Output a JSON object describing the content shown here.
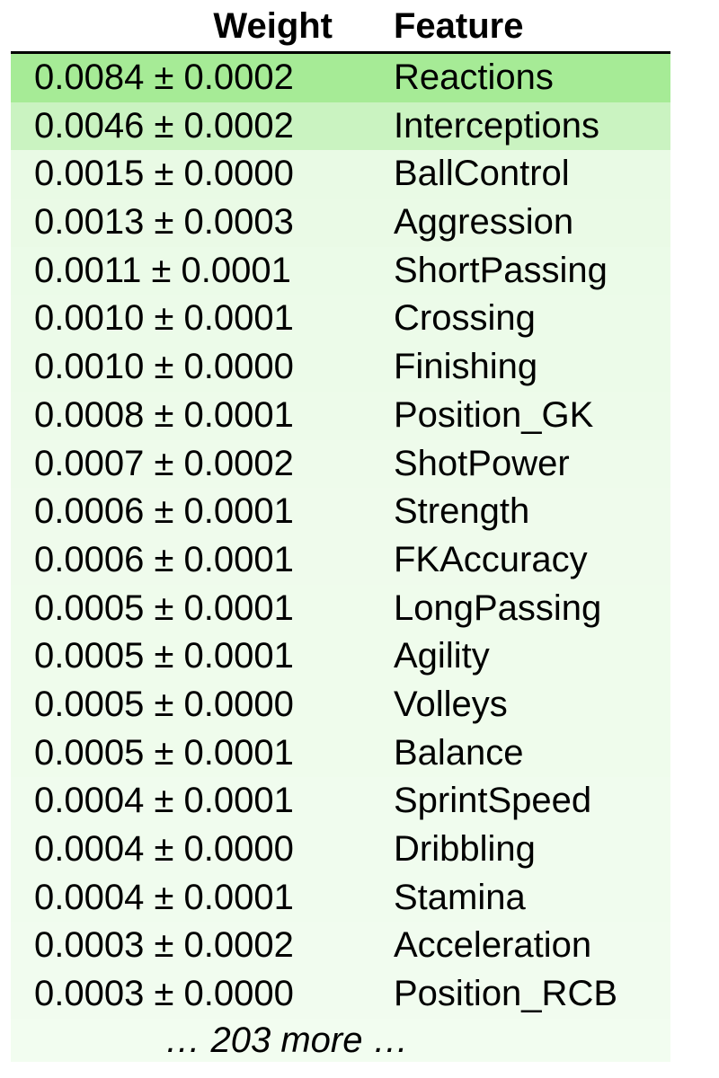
{
  "chart_data": {
    "type": "table",
    "columns": [
      "Weight",
      "Feature"
    ],
    "rows": [
      {
        "weight": "0.0084 ± 0.0002",
        "feature": "Reactions",
        "value": 0.0084,
        "std": 0.0002,
        "color": "#a6eb96"
      },
      {
        "weight": "0.0046 ± 0.0002",
        "feature": "Interceptions",
        "value": 0.0046,
        "std": 0.0002,
        "color": "#caf3c1"
      },
      {
        "weight": "0.0015 ± 0.0000",
        "feature": "BallControl",
        "value": 0.0015,
        "std": 0.0,
        "color": "#e9fae5"
      },
      {
        "weight": "0.0013 ± 0.0003",
        "feature": "Aggression",
        "value": 0.0013,
        "std": 0.0003,
        "color": "#eafae6"
      },
      {
        "weight": "0.0011 ± 0.0001",
        "feature": "ShortPassing",
        "value": 0.0011,
        "std": 0.0001,
        "color": "#ebfbe8"
      },
      {
        "weight": "0.0010 ± 0.0001",
        "feature": "Crossing",
        "value": 0.001,
        "std": 0.0001,
        "color": "#ecfbe9"
      },
      {
        "weight": "0.0010 ± 0.0000",
        "feature": "Finishing",
        "value": 0.001,
        "std": 0.0,
        "color": "#ecfbe9"
      },
      {
        "weight": "0.0008 ± 0.0001",
        "feature": "Position_GK",
        "value": 0.0008,
        "std": 0.0001,
        "color": "#edfbea"
      },
      {
        "weight": "0.0007 ± 0.0002",
        "feature": "ShotPower",
        "value": 0.0007,
        "std": 0.0002,
        "color": "#eefbeb"
      },
      {
        "weight": "0.0006 ± 0.0001",
        "feature": "Strength",
        "value": 0.0006,
        "std": 0.0001,
        "color": "#effbec"
      },
      {
        "weight": "0.0006 ± 0.0001",
        "feature": "FKAccuracy",
        "value": 0.0006,
        "std": 0.0001,
        "color": "#effbec"
      },
      {
        "weight": "0.0005 ± 0.0001",
        "feature": "LongPassing",
        "value": 0.0005,
        "std": 0.0001,
        "color": "#effcec"
      },
      {
        "weight": "0.0005 ± 0.0001",
        "feature": "Agility",
        "value": 0.0005,
        "std": 0.0001,
        "color": "#effcec"
      },
      {
        "weight": "0.0005 ± 0.0000",
        "feature": "Volleys",
        "value": 0.0005,
        "std": 0.0,
        "color": "#effcec"
      },
      {
        "weight": "0.0005 ± 0.0001",
        "feature": "Balance",
        "value": 0.0005,
        "std": 0.0001,
        "color": "#effcec"
      },
      {
        "weight": "0.0004 ± 0.0001",
        "feature": "SprintSpeed",
        "value": 0.0004,
        "std": 0.0001,
        "color": "#f0fcee"
      },
      {
        "weight": "0.0004 ± 0.0000",
        "feature": "Dribbling",
        "value": 0.0004,
        "std": 0.0,
        "color": "#f0fcee"
      },
      {
        "weight": "0.0004 ± 0.0001",
        "feature": "Stamina",
        "value": 0.0004,
        "std": 0.0001,
        "color": "#f0fcee"
      },
      {
        "weight": "0.0003 ± 0.0002",
        "feature": "Acceleration",
        "value": 0.0003,
        "std": 0.0002,
        "color": "#f1fcef"
      },
      {
        "weight": "0.0003 ± 0.0000",
        "feature": "Position_RCB",
        "value": 0.0003,
        "std": 0.0,
        "color": "#f1fcef"
      }
    ],
    "more_text": "… 203 more …"
  }
}
